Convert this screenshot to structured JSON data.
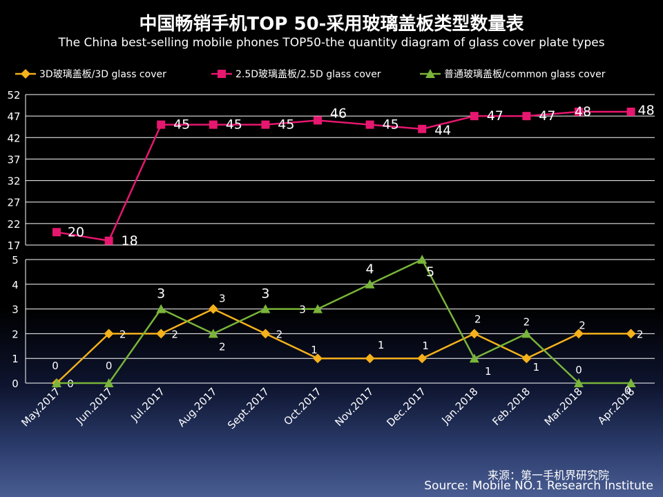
{
  "chart_data": {
    "type": "line",
    "title": "中国畅销手机TOP 50-采用玻璃盖板类型数量表",
    "subtitle": "The China best-selling mobile phones TOP50-the quantity diagram of glass cover plate types",
    "categories": [
      "May.2017",
      "Jun.2017",
      "Jul.2017",
      "Aug.2017",
      "Sept.2017",
      "Oct.2017",
      "Nov.2017",
      "Dec.2017",
      "Jan.2018",
      "Feb.2018",
      "Mar.2018",
      "Apr.2018"
    ],
    "series": [
      {
        "name": "3D玻璃盖板/3D glass cover",
        "color": "#f5b11c",
        "marker": "diamond",
        "panel": "lower",
        "values": [
          0,
          2,
          2,
          3,
          2,
          1,
          1,
          1,
          2,
          1,
          2,
          2
        ]
      },
      {
        "name": "2.5D玻璃盖板/2.5D glass cover",
        "color": "#e6176e",
        "marker": "square",
        "panel": "upper",
        "values": [
          20,
          18,
          45,
          45,
          45,
          46,
          45,
          44,
          47,
          47,
          48,
          48
        ]
      },
      {
        "name": "普通玻璃盖板/common glass cover",
        "color": "#79b53a",
        "marker": "triangle",
        "panel": "lower",
        "values": [
          0,
          0,
          3,
          2,
          3,
          3,
          4,
          5,
          1,
          2,
          0,
          0
        ]
      }
    ],
    "upper_axis": {
      "ylim": [
        17,
        52
      ],
      "ticks": [
        "17",
        "22",
        "27",
        "32",
        "37",
        "42",
        "47",
        "52"
      ]
    },
    "lower_axis": {
      "ylim": [
        0,
        5
      ],
      "ticks": [
        "0",
        "1",
        "2",
        "3",
        "4",
        "5"
      ]
    },
    "legend_position": "top"
  },
  "source": {
    "zh": "来源：第一手机界研究院",
    "en": "Source: Mobile NO.1 Research Institute"
  }
}
